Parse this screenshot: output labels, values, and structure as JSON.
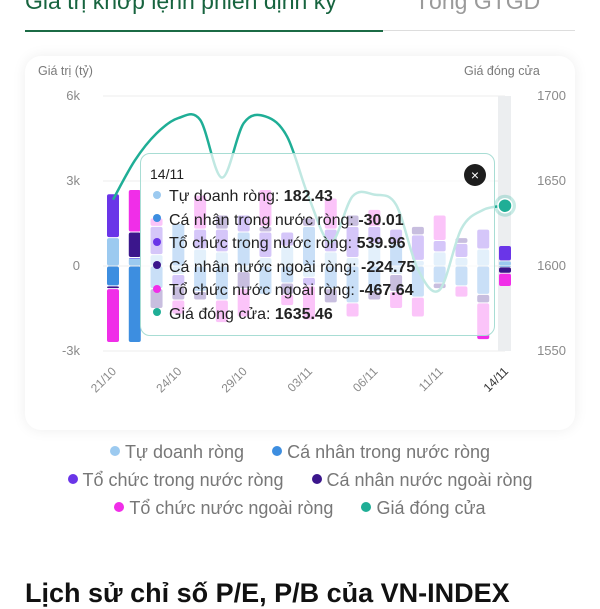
{
  "tabs": [
    {
      "label": "Giá trị khớp lệnh phiên định kỳ",
      "active": true
    },
    {
      "label": "Tổng GTGD",
      "active": false
    }
  ],
  "colors": {
    "accent": "#17643f"
  },
  "chart_data": {
    "type": "bar",
    "left_axis_title": "Giá trị (tỷ)",
    "right_axis_title": "Giá đóng cửa",
    "left_ticks": [
      "6k",
      "3k",
      "0",
      "-3k"
    ],
    "left_tick_values": [
      6000,
      3000,
      0,
      -3000
    ],
    "right_ticks": [
      "1700",
      "1650",
      "1600",
      "1550"
    ],
    "right_tick_values": [
      1700,
      1650,
      1600,
      1550
    ],
    "ylim_left": [
      -3000,
      6000
    ],
    "ylim_right": [
      1550,
      1700
    ],
    "grid": true,
    "x_tick_labels": [
      "21/10",
      "24/10",
      "29/10",
      "03/11",
      "06/11",
      "11/11",
      "14/11"
    ],
    "categories": [
      "21/10",
      "22/10",
      "23/10",
      "24/10",
      "27/10",
      "28/10",
      "29/10",
      "30/10",
      "31/10",
      "03/11",
      "04/11",
      "05/11",
      "06/11",
      "07/11",
      "10/11",
      "11/11",
      "12/11",
      "13/11",
      "14/11"
    ],
    "series": [
      {
        "name": "Tự doanh ròng",
        "color": "#9ccaf0",
        "type": "bar",
        "values": [
          1000,
          300,
          400,
          -300,
          600,
          500,
          -200,
          300,
          700,
          -400,
          500,
          300,
          800,
          -300,
          200,
          500,
          300,
          600,
          182.43
        ]
      },
      {
        "name": "Cá nhân trong nước ròng",
        "color": "#3d8ee0",
        "type": "bar",
        "values": [
          -700,
          -2700,
          -800,
          1500,
          -900,
          -1200,
          1200,
          -1000,
          -600,
          1400,
          -800,
          -1300,
          -900,
          800,
          -1100,
          -600,
          -700,
          -1000,
          -30.01
        ]
      },
      {
        "name": "Tổ chức trong nước ròng",
        "color": "#6a35e8",
        "type": "bar",
        "values": [
          1550,
          0,
          1000,
          -400,
          700,
          800,
          600,
          900,
          500,
          -300,
          800,
          1100,
          600,
          500,
          900,
          400,
          500,
          700,
          539.96
        ]
      },
      {
        "name": "Cá nhân nước ngoài ròng",
        "color": "#3b168c",
        "type": "bar",
        "values": [
          -100,
          900,
          -700,
          -500,
          -300,
          500,
          -600,
          200,
          -400,
          300,
          -500,
          400,
          -300,
          -600,
          300,
          -200,
          200,
          -300,
          -224.75
        ]
      },
      {
        "name": "Tổ chức nước ngoài ròng",
        "color": "#f02ee8",
        "type": "bar",
        "values": [
          -1900,
          1500,
          300,
          -500,
          1200,
          -800,
          -1000,
          1300,
          -400,
          -1200,
          1100,
          -500,
          600,
          -600,
          -700,
          900,
          -400,
          -1300,
          -467.64
        ]
      },
      {
        "name": "Giá đóng cửa",
        "color": "#1fae96",
        "type": "line",
        "axis": "right",
        "values": [
          1639,
          1662,
          1678,
          1687,
          1686,
          1652,
          1684,
          1688,
          1676,
          1640,
          1614,
          1641,
          1642,
          1636,
          1598,
          1586,
          1622,
          1633,
          1635.46
        ]
      }
    ],
    "highlighted_category": "14/11"
  },
  "tooltip": {
    "date": "14/11",
    "close_icon": "×",
    "rows": [
      {
        "label": "Tự doanh ròng:",
        "value": "182.43",
        "color": "#9ccaf0"
      },
      {
        "label": "Cá nhân trong nước ròng:",
        "value": "-30.01",
        "color": "#3d8ee0"
      },
      {
        "label": "Tổ chức trong nước ròng:",
        "value": "539.96",
        "color": "#6a35e8"
      },
      {
        "label": "Cá nhân nước ngoài ròng:",
        "value": "-224.75",
        "color": "#3b168c"
      },
      {
        "label": "Tổ chức nước ngoài ròng:",
        "value": "-467.64",
        "color": "#f02ee8"
      },
      {
        "label": "Giá đóng cửa:",
        "value": "1635.46",
        "color": "#1fae96"
      }
    ]
  },
  "legend": [
    {
      "label": "Tự doanh ròng",
      "color": "#9ccaf0"
    },
    {
      "label": "Cá nhân trong nước ròng",
      "color": "#3d8ee0"
    },
    {
      "label": "Tổ chức trong nước ròng",
      "color": "#6a35e8"
    },
    {
      "label": "Cá nhân nước ngoài ròng",
      "color": "#3b168c"
    },
    {
      "label": "Tổ chức nước ngoài ròng",
      "color": "#f02ee8"
    },
    {
      "label": "Giá đóng cửa",
      "color": "#1fae96"
    }
  ],
  "section_title": "Lịch sử chỉ số P/E, P/B của VN-INDEX"
}
